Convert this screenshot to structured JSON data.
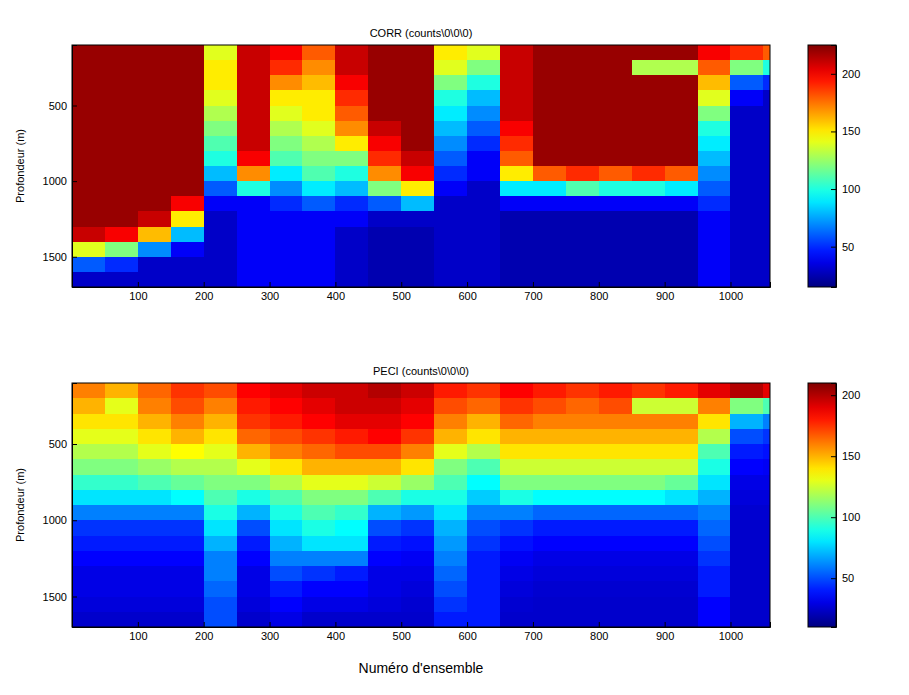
{
  "chart_data": [
    {
      "type": "heatmap",
      "title": "CORR (counts\\0\\0\\0)",
      "y_label": "Profondeur (m)",
      "xlim": [
        0,
        1060
      ],
      "ylim": [
        100,
        1700
      ],
      "xticks": [
        100,
        200,
        300,
        400,
        500,
        600,
        700,
        800,
        900,
        1000
      ],
      "yticks": [
        500,
        1000,
        1500
      ],
      "x_bins": [
        0,
        50,
        100,
        150,
        200,
        250,
        300,
        350,
        400,
        450,
        500,
        550,
        600,
        650,
        700,
        750,
        800,
        850,
        900,
        950,
        1000,
        1050,
        1060
      ],
      "y_bins": [
        100,
        200,
        300,
        400,
        500,
        600,
        700,
        800,
        900,
        1000,
        1100,
        1200,
        1300,
        1400,
        1500,
        1600,
        1700
      ],
      "colorbar_lim": [
        15,
        225
      ],
      "colorbar_ticks": [
        50,
        100,
        150,
        200
      ],
      "values": [
        [
          220,
          220,
          220,
          220,
          220,
          220,
          220,
          220,
          220,
          220,
          220,
          220,
          210,
          140,
          60,
          30
        ],
        [
          220,
          220,
          220,
          220,
          220,
          220,
          220,
          220,
          220,
          220,
          220,
          220,
          200,
          120,
          50,
          30
        ],
        [
          220,
          220,
          220,
          220,
          220,
          220,
          220,
          220,
          220,
          220,
          220,
          210,
          160,
          70,
          30,
          30
        ],
        [
          220,
          220,
          220,
          220,
          220,
          220,
          220,
          220,
          220,
          220,
          200,
          150,
          80,
          40,
          30,
          30
        ],
        [
          140,
          150,
          150,
          140,
          130,
          120,
          110,
          100,
          80,
          60,
          40,
          30,
          30,
          30,
          30,
          30
        ],
        [
          210,
          210,
          210,
          210,
          210,
          210,
          210,
          200,
          170,
          100,
          40,
          40,
          40,
          40,
          40,
          40
        ],
        [
          200,
          190,
          170,
          150,
          140,
          130,
          120,
          110,
          90,
          70,
          50,
          40,
          40,
          40,
          40,
          40
        ],
        [
          180,
          170,
          160,
          150,
          150,
          140,
          130,
          120,
          110,
          90,
          60,
          40,
          40,
          40,
          40,
          40
        ],
        [
          210,
          210,
          200,
          190,
          180,
          170,
          150,
          120,
          100,
          80,
          50,
          40,
          30,
          30,
          30,
          30
        ],
        [
          220,
          220,
          220,
          220,
          220,
          210,
          200,
          190,
          170,
          120,
          60,
          30,
          25,
          25,
          25,
          25
        ],
        [
          220,
          220,
          220,
          220,
          220,
          220,
          220,
          210,
          200,
          150,
          80,
          30,
          25,
          25,
          25,
          25
        ],
        [
          150,
          140,
          120,
          100,
          90,
          80,
          70,
          60,
          50,
          40,
          30,
          30,
          30,
          30,
          30,
          30
        ],
        [
          140,
          120,
          100,
          80,
          70,
          60,
          50,
          40,
          40,
          30,
          30,
          30,
          30,
          30,
          30,
          30
        ],
        [
          210,
          210,
          210,
          210,
          210,
          200,
          190,
          180,
          150,
          90,
          40,
          25,
          25,
          25,
          25,
          25
        ],
        [
          220,
          220,
          220,
          220,
          220,
          220,
          220,
          220,
          180,
          90,
          40,
          25,
          25,
          25,
          25,
          25
        ],
        [
          220,
          220,
          220,
          220,
          220,
          220,
          220,
          220,
          190,
          110,
          40,
          25,
          25,
          25,
          25,
          25
        ],
        [
          220,
          220,
          220,
          220,
          220,
          220,
          220,
          220,
          180,
          100,
          40,
          25,
          25,
          25,
          25,
          25
        ],
        [
          220,
          130,
          220,
          220,
          220,
          220,
          220,
          220,
          190,
          100,
          40,
          25,
          25,
          25,
          25,
          25
        ],
        [
          220,
          130,
          220,
          220,
          220,
          220,
          220,
          220,
          180,
          90,
          40,
          25,
          25,
          25,
          25,
          25
        ],
        [
          200,
          180,
          160,
          140,
          120,
          100,
          90,
          80,
          70,
          60,
          50,
          40,
          40,
          40,
          40,
          40
        ],
        [
          190,
          120,
          60,
          40,
          30,
          30,
          30,
          30,
          30,
          30,
          30,
          30,
          30,
          30,
          30,
          30
        ],
        [
          180,
          100,
          50,
          30,
          30,
          30,
          30,
          30,
          30,
          30,
          30,
          30,
          30,
          30,
          30,
          30
        ]
      ]
    },
    {
      "type": "heatmap",
      "title": "PECI (counts\\0\\0\\0)",
      "y_label": "Profondeur (m)",
      "x_label": "Numéro d'ensemble",
      "xlim": [
        0,
        1060
      ],
      "ylim": [
        100,
        1700
      ],
      "xticks": [
        100,
        200,
        300,
        400,
        500,
        600,
        700,
        800,
        900,
        1000
      ],
      "yticks": [
        500,
        1000,
        1500
      ],
      "x_bins": [
        0,
        50,
        100,
        150,
        200,
        250,
        300,
        350,
        400,
        450,
        500,
        550,
        600,
        650,
        700,
        750,
        800,
        850,
        900,
        950,
        1000,
        1050,
        1060
      ],
      "y_bins": [
        100,
        200,
        300,
        400,
        500,
        600,
        700,
        800,
        900,
        1000,
        1100,
        1200,
        1300,
        1400,
        1500,
        1600,
        1700
      ],
      "colorbar_lim": [
        10,
        210
      ],
      "colorbar_ticks": [
        50,
        100,
        150,
        200
      ],
      "values": [
        [
          160,
          150,
          140,
          130,
          120,
          110,
          95,
          80,
          60,
          45,
          40,
          35,
          30,
          30,
          28,
          25
        ],
        [
          150,
          130,
          140,
          130,
          120,
          110,
          95,
          80,
          60,
          45,
          40,
          35,
          30,
          30,
          28,
          25
        ],
        [
          165,
          160,
          150,
          140,
          130,
          115,
          100,
          80,
          60,
          45,
          40,
          35,
          30,
          30,
          28,
          25
        ],
        [
          175,
          170,
          160,
          150,
          135,
          120,
          105,
          85,
          60,
          45,
          40,
          35,
          30,
          30,
          28,
          25
        ],
        [
          170,
          160,
          150,
          140,
          130,
          120,
          110,
          100,
          90,
          80,
          70,
          60,
          60,
          55,
          50,
          50
        ],
        [
          185,
          180,
          175,
          165,
          150,
          130,
          110,
          90,
          70,
          50,
          40,
          35,
          30,
          30,
          28,
          25
        ],
        [
          190,
          185,
          180,
          170,
          160,
          140,
          120,
          100,
          90,
          80,
          70,
          60,
          50,
          40,
          35,
          30
        ],
        [
          195,
          190,
          185,
          175,
          165,
          150,
          130,
          110,
          100,
          90,
          80,
          60,
          45,
          35,
          30,
          25
        ],
        [
          195,
          195,
          190,
          180,
          170,
          150,
          130,
          110,
          95,
          85,
          80,
          60,
          40,
          35,
          30,
          25
        ],
        [
          200,
          195,
          190,
          185,
          170,
          150,
          125,
          100,
          70,
          50,
          40,
          35,
          30,
          30,
          28,
          25
        ],
        [
          195,
          190,
          185,
          175,
          160,
          140,
          115,
          90,
          65,
          45,
          38,
          33,
          30,
          28,
          26,
          25
        ],
        [
          180,
          170,
          160,
          150,
          130,
          110,
          100,
          90,
          80,
          70,
          65,
          60,
          55,
          50,
          45,
          40
        ],
        [
          175,
          165,
          150,
          140,
          120,
          100,
          85,
          75,
          60,
          50,
          45,
          40,
          40,
          40,
          40,
          40
        ],
        [
          185,
          175,
          165,
          150,
          140,
          125,
          110,
          90,
          60,
          45,
          38,
          33,
          30,
          28,
          26,
          25
        ],
        [
          180,
          170,
          160,
          150,
          140,
          125,
          110,
          85,
          55,
          40,
          35,
          30,
          28,
          26,
          25,
          25
        ],
        [
          175,
          165,
          160,
          150,
          140,
          125,
          110,
          85,
          55,
          40,
          35,
          30,
          28,
          26,
          25,
          25
        ],
        [
          180,
          170,
          160,
          150,
          140,
          125,
          110,
          85,
          55,
          40,
          35,
          30,
          28,
          26,
          25,
          25
        ],
        [
          175,
          125,
          160,
          150,
          140,
          125,
          110,
          85,
          55,
          40,
          35,
          30,
          28,
          26,
          25,
          25
        ],
        [
          180,
          125,
          160,
          150,
          140,
          125,
          105,
          80,
          55,
          40,
          35,
          30,
          28,
          26,
          25,
          25
        ],
        [
          190,
          160,
          140,
          120,
          100,
          90,
          80,
          70,
          60,
          55,
          50,
          45,
          40,
          40,
          35,
          35
        ],
        [
          200,
          110,
          70,
          50,
          40,
          35,
          30,
          28,
          26,
          25,
          25,
          25,
          25,
          25,
          25,
          25
        ],
        [
          190,
          100,
          60,
          45,
          38,
          33,
          30,
          28,
          26,
          25,
          25,
          25,
          25,
          25,
          25,
          25
        ]
      ]
    }
  ]
}
